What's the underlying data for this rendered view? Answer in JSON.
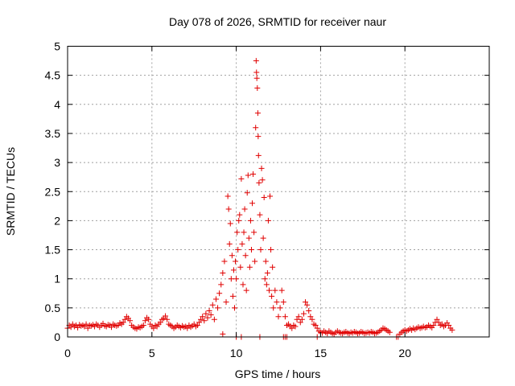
{
  "chart_data": {
    "type": "scatter",
    "title": "Day 078 of 2026, SRMTID for receiver naur",
    "xlabel": "GPS time / hours",
    "ylabel": "SRMTID / TECUs",
    "xlim": [
      0,
      25
    ],
    "ylim": [
      0,
      5
    ],
    "x_ticks": [
      0,
      5,
      10,
      15,
      20
    ],
    "x_tick_labels": [
      "0",
      "5",
      "10",
      "15",
      "20"
    ],
    "y_ticks": [
      0,
      0.5,
      1,
      1.5,
      2,
      2.5,
      3,
      3.5,
      4,
      4.5,
      5
    ],
    "y_tick_labels": [
      "0",
      "0.5",
      "1",
      "1.5",
      "2",
      "2.5",
      "3",
      "3.5",
      "4",
      "4.5",
      "5"
    ],
    "grid": true,
    "marker": "+",
    "series": [
      {
        "name": "SRMTID",
        "color": "#e00000",
        "points": [
          [
            0.0,
            0.15
          ],
          [
            0.1,
            0.2
          ],
          [
            0.2,
            0.17
          ],
          [
            0.3,
            0.22
          ],
          [
            0.4,
            0.18
          ],
          [
            0.5,
            0.2
          ],
          [
            0.6,
            0.16
          ],
          [
            0.7,
            0.21
          ],
          [
            0.8,
            0.19
          ],
          [
            0.9,
            0.2
          ],
          [
            1.0,
            0.18
          ],
          [
            1.1,
            0.22
          ],
          [
            1.2,
            0.15
          ],
          [
            1.3,
            0.2
          ],
          [
            1.4,
            0.19
          ],
          [
            1.5,
            0.21
          ],
          [
            1.6,
            0.18
          ],
          [
            1.7,
            0.22
          ],
          [
            1.8,
            0.2
          ],
          [
            1.9,
            0.17
          ],
          [
            2.0,
            0.2
          ],
          [
            2.1,
            0.23
          ],
          [
            2.2,
            0.19
          ],
          [
            2.3,
            0.18
          ],
          [
            2.4,
            0.21
          ],
          [
            2.5,
            0.2
          ],
          [
            2.6,
            0.17
          ],
          [
            2.7,
            0.22
          ],
          [
            2.8,
            0.2
          ],
          [
            2.9,
            0.19
          ],
          [
            3.0,
            0.2
          ],
          [
            3.1,
            0.24
          ],
          [
            3.2,
            0.22
          ],
          [
            3.3,
            0.25
          ],
          [
            3.4,
            0.3
          ],
          [
            3.5,
            0.35
          ],
          [
            3.6,
            0.32
          ],
          [
            3.7,
            0.28
          ],
          [
            3.8,
            0.2
          ],
          [
            3.9,
            0.17
          ],
          [
            4.0,
            0.15
          ],
          [
            4.1,
            0.14
          ],
          [
            4.2,
            0.17
          ],
          [
            4.3,
            0.16
          ],
          [
            4.4,
            0.18
          ],
          [
            4.5,
            0.2
          ],
          [
            4.6,
            0.28
          ],
          [
            4.7,
            0.33
          ],
          [
            4.8,
            0.3
          ],
          [
            4.9,
            0.22
          ],
          [
            5.0,
            0.18
          ],
          [
            5.1,
            0.15
          ],
          [
            5.2,
            0.2
          ],
          [
            5.3,
            0.18
          ],
          [
            5.4,
            0.22
          ],
          [
            5.5,
            0.25
          ],
          [
            5.6,
            0.3
          ],
          [
            5.7,
            0.32
          ],
          [
            5.8,
            0.36
          ],
          [
            5.9,
            0.3
          ],
          [
            6.0,
            0.22
          ],
          [
            6.1,
            0.2
          ],
          [
            6.2,
            0.18
          ],
          [
            6.3,
            0.15
          ],
          [
            6.4,
            0.17
          ],
          [
            6.5,
            0.2
          ],
          [
            6.6,
            0.18
          ],
          [
            6.7,
            0.16
          ],
          [
            6.8,
            0.19
          ],
          [
            6.9,
            0.17
          ],
          [
            7.0,
            0.18
          ],
          [
            7.1,
            0.15
          ],
          [
            7.2,
            0.2
          ],
          [
            7.3,
            0.17
          ],
          [
            7.4,
            0.19
          ],
          [
            7.5,
            0.22
          ],
          [
            7.6,
            0.18
          ],
          [
            7.7,
            0.2
          ],
          [
            7.8,
            0.25
          ],
          [
            7.9,
            0.3
          ],
          [
            8.0,
            0.35
          ],
          [
            8.1,
            0.28
          ],
          [
            8.2,
            0.4
          ],
          [
            8.3,
            0.33
          ],
          [
            8.4,
            0.45
          ],
          [
            8.5,
            0.38
          ],
          [
            8.6,
            0.55
          ],
          [
            8.7,
            0.3
          ],
          [
            8.8,
            0.65
          ],
          [
            8.9,
            0.5
          ],
          [
            9.0,
            0.75
          ],
          [
            9.1,
            0.9
          ],
          [
            9.2,
            1.1
          ],
          [
            9.3,
            1.3
          ],
          [
            9.4,
            0.6
          ],
          [
            9.5,
            2.42
          ],
          [
            9.55,
            2.2
          ],
          [
            9.6,
            1.6
          ],
          [
            9.65,
            1.95
          ],
          [
            9.7,
            1.0
          ],
          [
            9.75,
            1.4
          ],
          [
            9.8,
            0.7
          ],
          [
            9.85,
            1.15
          ],
          [
            9.9,
            0.5
          ],
          [
            9.95,
            1.3
          ],
          [
            10.0,
            1.0
          ],
          [
            10.05,
            1.8
          ],
          [
            10.1,
            1.5
          ],
          [
            10.15,
            2.0
          ],
          [
            10.2,
            2.1
          ],
          [
            10.25,
            1.2
          ],
          [
            10.3,
            2.72
          ],
          [
            10.35,
            1.6
          ],
          [
            10.4,
            0.9
          ],
          [
            10.45,
            1.8
          ],
          [
            10.5,
            2.2
          ],
          [
            10.55,
            1.4
          ],
          [
            10.6,
            0.8
          ],
          [
            10.65,
            2.48
          ],
          [
            10.7,
            2.78
          ],
          [
            10.75,
            1.7
          ],
          [
            10.8,
            1.2
          ],
          [
            10.85,
            2.0
          ],
          [
            10.9,
            1.5
          ],
          [
            10.95,
            2.3
          ],
          [
            11.0,
            2.8
          ],
          [
            11.05,
            1.8
          ],
          [
            11.1,
            1.3
          ],
          [
            11.15,
            3.6
          ],
          [
            11.18,
            4.75
          ],
          [
            11.2,
            4.55
          ],
          [
            11.22,
            4.45
          ],
          [
            11.25,
            4.28
          ],
          [
            11.28,
            3.85
          ],
          [
            11.3,
            3.45
          ],
          [
            11.32,
            3.12
          ],
          [
            11.35,
            2.65
          ],
          [
            11.4,
            2.1
          ],
          [
            11.45,
            1.5
          ],
          [
            11.5,
            2.9
          ],
          [
            11.55,
            2.7
          ],
          [
            11.6,
            1.7
          ],
          [
            11.65,
            2.4
          ],
          [
            11.7,
            1.0
          ],
          [
            11.75,
            1.3
          ],
          [
            11.8,
            0.9
          ],
          [
            11.85,
            1.1
          ],
          [
            11.9,
            2.0
          ],
          [
            11.95,
            0.8
          ],
          [
            12.0,
            2.42
          ],
          [
            12.05,
            1.5
          ],
          [
            12.1,
            0.7
          ],
          [
            12.15,
            1.2
          ],
          [
            12.2,
            0.5
          ],
          [
            12.3,
            0.8
          ],
          [
            12.4,
            0.6
          ],
          [
            12.5,
            0.35
          ],
          [
            12.6,
            0.5
          ],
          [
            12.7,
            0.8
          ],
          [
            12.8,
            0.6
          ],
          [
            12.9,
            0.35
          ],
          [
            13.0,
            0.2
          ],
          [
            13.1,
            0.22
          ],
          [
            13.2,
            0.18
          ],
          [
            13.3,
            0.15
          ],
          [
            13.4,
            0.2
          ],
          [
            13.5,
            0.18
          ],
          [
            13.6,
            0.3
          ],
          [
            13.7,
            0.35
          ],
          [
            13.8,
            0.25
          ],
          [
            13.9,
            0.3
          ],
          [
            14.0,
            0.4
          ],
          [
            14.1,
            0.6
          ],
          [
            14.2,
            0.55
          ],
          [
            14.3,
            0.45
          ],
          [
            14.4,
            0.35
          ],
          [
            14.5,
            0.3
          ],
          [
            14.6,
            0.22
          ],
          [
            14.7,
            0.2
          ],
          [
            14.8,
            0.15
          ],
          [
            14.9,
            0.1
          ],
          [
            15.0,
            0.08
          ],
          [
            15.1,
            0.07
          ],
          [
            15.2,
            0.1
          ],
          [
            15.3,
            0.08
          ],
          [
            15.4,
            0.06
          ],
          [
            15.5,
            0.1
          ],
          [
            15.6,
            0.08
          ],
          [
            15.7,
            0.06
          ],
          [
            15.8,
            0.05
          ],
          [
            15.9,
            0.08
          ],
          [
            16.0,
            0.1
          ],
          [
            16.1,
            0.08
          ],
          [
            16.2,
            0.07
          ],
          [
            16.3,
            0.06
          ],
          [
            16.4,
            0.08
          ],
          [
            16.5,
            0.09
          ],
          [
            16.6,
            0.07
          ],
          [
            16.7,
            0.06
          ],
          [
            16.8,
            0.08
          ],
          [
            16.9,
            0.07
          ],
          [
            17.0,
            0.09
          ],
          [
            17.1,
            0.08
          ],
          [
            17.2,
            0.06
          ],
          [
            17.3,
            0.07
          ],
          [
            17.4,
            0.09
          ],
          [
            17.5,
            0.08
          ],
          [
            17.6,
            0.06
          ],
          [
            17.7,
            0.07
          ],
          [
            17.8,
            0.08
          ],
          [
            17.9,
            0.07
          ],
          [
            18.0,
            0.09
          ],
          [
            18.1,
            0.08
          ],
          [
            18.2,
            0.06
          ],
          [
            18.3,
            0.07
          ],
          [
            18.4,
            0.08
          ],
          [
            18.5,
            0.1
          ],
          [
            18.6,
            0.12
          ],
          [
            18.7,
            0.15
          ],
          [
            18.8,
            0.14
          ],
          [
            18.9,
            0.12
          ],
          [
            19.0,
            0.1
          ],
          [
            19.1,
            0.08
          ],
          [
            19.6,
            0.0
          ],
          [
            19.7,
            0.05
          ],
          [
            19.8,
            0.08
          ],
          [
            19.9,
            0.1
          ],
          [
            20.0,
            0.12
          ],
          [
            20.1,
            0.1
          ],
          [
            20.2,
            0.12
          ],
          [
            20.3,
            0.14
          ],
          [
            20.4,
            0.12
          ],
          [
            20.5,
            0.15
          ],
          [
            20.6,
            0.13
          ],
          [
            20.7,
            0.15
          ],
          [
            20.8,
            0.17
          ],
          [
            20.9,
            0.15
          ],
          [
            21.0,
            0.16
          ],
          [
            21.1,
            0.18
          ],
          [
            21.2,
            0.16
          ],
          [
            21.3,
            0.17
          ],
          [
            21.4,
            0.2
          ],
          [
            21.5,
            0.18
          ],
          [
            21.6,
            0.16
          ],
          [
            21.7,
            0.2
          ],
          [
            21.8,
            0.25
          ],
          [
            21.9,
            0.3
          ],
          [
            22.0,
            0.25
          ],
          [
            22.1,
            0.2
          ],
          [
            22.2,
            0.22
          ],
          [
            22.3,
            0.18
          ],
          [
            22.4,
            0.2
          ],
          [
            22.5,
            0.24
          ],
          [
            22.6,
            0.2
          ],
          [
            22.7,
            0.15
          ],
          [
            22.8,
            0.12
          ],
          [
            12.8,
            0.0
          ],
          [
            12.9,
            0.0
          ],
          [
            13.0,
            0.0
          ],
          [
            14.8,
            0.0
          ],
          [
            11.4,
            0.0
          ],
          [
            10.3,
            0.0
          ],
          [
            10.0,
            0.0
          ],
          [
            9.2,
            0.05
          ],
          [
            19.5,
            0.0
          ]
        ]
      }
    ]
  }
}
